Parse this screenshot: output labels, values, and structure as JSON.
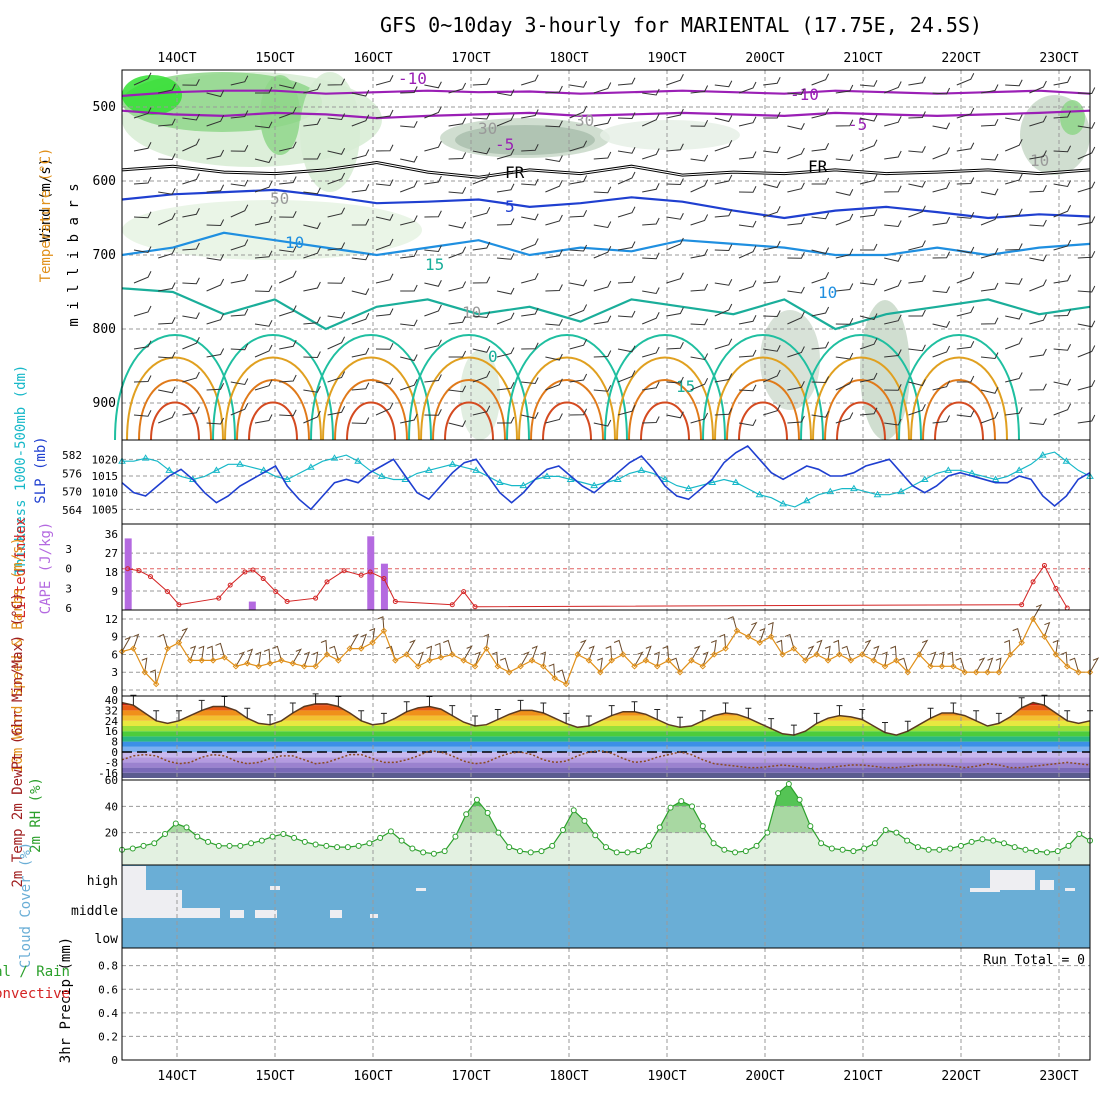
{
  "title": "GFS 0~10day 3-hourly for MARIENTAL (17.75E, 24.5S)",
  "time_labels": [
    "14OCT",
    "15OCT",
    "16OCT",
    "17OCT",
    "18OCT",
    "19OCT",
    "20OCT",
    "21OCT",
    "22OCT",
    "23OCT"
  ],
  "colors": {
    "purple": "#9a1fb5",
    "blue": "#1f3fd0",
    "cyan": "#17b8c8",
    "green": "#2ca02c",
    "orange": "#e0901a",
    "red": "#d42424",
    "sky": "#6aaed6"
  },
  "chart_data": [
    {
      "type": "heatmap",
      "id": "upper_air",
      "ylabel": "m i l l i b a r s",
      "side_labels": [
        "Wind (m/s)",
        "Temperature (°C)",
        "RH (%)"
      ],
      "yticks": [
        500,
        600,
        700,
        800,
        900
      ],
      "ylim": [
        950,
        450
      ],
      "contour_labels": [
        "-10",
        "-10",
        "-5",
        "-5",
        "FR",
        "FR",
        "5",
        "10",
        "15",
        "10",
        "0",
        "15",
        "10",
        "30",
        "30",
        "50",
        "10"
      ],
      "temp_levels": [
        {
          "name": "-10",
          "mb": [
            485,
            480,
            478,
            478,
            482,
            480,
            478,
            480,
            479,
            482,
            480,
            478,
            480,
            482,
            478,
            480,
            482,
            480,
            478,
            482
          ]
        },
        {
          "name": "-5",
          "mb": [
            505,
            510,
            512,
            508,
            510,
            515,
            512,
            510,
            508,
            512,
            510,
            508,
            510,
            512,
            508,
            510,
            512,
            510,
            508,
            505
          ]
        },
        {
          "name": "FR",
          "mb": [
            585,
            580,
            588,
            590,
            585,
            575,
            588,
            595,
            585,
            590,
            580,
            592,
            588,
            590,
            585,
            590,
            588,
            585,
            590,
            585
          ]
        },
        {
          "name": "5",
          "mb": [
            625,
            618,
            615,
            612,
            620,
            630,
            628,
            625,
            635,
            630,
            622,
            628,
            640,
            650,
            640,
            635,
            642,
            650,
            645,
            648
          ]
        },
        {
          "name": "10",
          "mb": [
            700,
            690,
            670,
            680,
            690,
            700,
            690,
            680,
            700,
            690,
            695,
            680,
            685,
            690,
            700,
            700,
            690,
            700,
            690,
            685
          ]
        },
        {
          "name": "15",
          "mb": [
            745,
            750,
            780,
            760,
            800,
            770,
            760,
            780,
            770,
            790,
            760,
            770,
            780,
            760,
            800,
            780,
            770,
            760,
            780,
            770
          ]
        }
      ],
      "rh_note": "RH shaded greens"
    },
    {
      "type": "line",
      "id": "thickness_slp",
      "ylabel_left": "Thickness 1000-500mb (dm)",
      "ylabel_right": "SLP (mb)",
      "yticks_left": [
        564,
        570,
        576,
        582
      ],
      "yticks_right": [
        1005,
        1010,
        1015,
        1020
      ],
      "series": [
        {
          "name": "SLP (mb)",
          "values": [
            1013,
            1010,
            1009,
            1012,
            1015,
            1017,
            1014,
            1010,
            1007,
            1009,
            1012,
            1014,
            1016,
            1018,
            1012,
            1008,
            1005,
            1009,
            1013,
            1014,
            1013,
            1016,
            1018,
            1020,
            1015,
            1010,
            1008,
            1012,
            1016,
            1019,
            1020,
            1015,
            1010,
            1007,
            1010,
            1014,
            1017,
            1018,
            1015,
            1012,
            1010,
            1013,
            1016,
            1019,
            1021,
            1017,
            1012,
            1009,
            1008,
            1011,
            1014,
            1019,
            1022,
            1024,
            1020,
            1016,
            1014,
            1016,
            1018,
            1017,
            1015,
            1015,
            1016,
            1018,
            1019,
            1020,
            1016,
            1012,
            1010,
            1012,
            1015,
            1016,
            1015,
            1014,
            1013,
            1013,
            1015,
            1014,
            1009,
            1006,
            1009,
            1014,
            1016
          ]
        },
        {
          "name": "Thickness (dm)",
          "values": [
            580,
            580,
            581,
            580,
            577,
            575,
            574,
            575,
            577,
            579,
            579,
            578,
            577,
            575,
            574,
            576,
            578,
            580,
            581,
            582,
            580,
            577,
            575,
            574,
            574,
            576,
            577,
            578,
            579,
            578,
            577,
            575,
            573,
            572,
            572,
            574,
            575,
            575,
            574,
            573,
            572,
            573,
            574,
            576,
            577,
            576,
            574,
            572,
            571,
            572,
            573,
            574,
            573,
            571,
            569,
            568,
            566,
            565,
            567,
            569,
            570,
            571,
            571,
            570,
            569,
            569,
            570,
            572,
            574,
            576,
            577,
            577,
            576,
            575,
            574,
            575,
            577,
            579,
            582,
            583,
            580,
            577,
            575
          ]
        }
      ]
    },
    {
      "type": "bar",
      "id": "cape_li",
      "ylabel_left": "Lifted Index",
      "ylabel_right": "CAPE (J/kg)",
      "yticks_li": [
        -3,
        0,
        3,
        6
      ],
      "yticks_cape": [
        9,
        18,
        27,
        36
      ],
      "cape_values": [
        {
          "x": 0.5,
          "v": 34
        },
        {
          "x": 11.4,
          "v": 4
        },
        {
          "x": 21.8,
          "v": 35
        },
        {
          "x": 23.0,
          "v": 22
        }
      ],
      "li_values": [
        {
          "x": 0.5,
          "v": 0.0
        },
        {
          "x": 1.5,
          "v": 0.3
        },
        {
          "x": 2.5,
          "v": 1.2
        },
        {
          "x": 4.0,
          "v": 3.5
        },
        {
          "x": 5.0,
          "v": 5.5
        },
        {
          "x": 8.5,
          "v": 4.5
        },
        {
          "x": 9.5,
          "v": 2.5
        },
        {
          "x": 10.8,
          "v": 0.5
        },
        {
          "x": 11.5,
          "v": 0.2
        },
        {
          "x": 12.4,
          "v": 1.5
        },
        {
          "x": 13.5,
          "v": 3.5
        },
        {
          "x": 14.5,
          "v": 5.0
        },
        {
          "x": 17.0,
          "v": 4.5
        },
        {
          "x": 18.0,
          "v": 2.0
        },
        {
          "x": 19.5,
          "v": 0.3
        },
        {
          "x": 21.0,
          "v": 1.0
        },
        {
          "x": 21.8,
          "v": 0.5
        },
        {
          "x": 23.0,
          "v": 1.5
        },
        {
          "x": 24.0,
          "v": 5.0
        },
        {
          "x": 29.0,
          "v": 5.5
        },
        {
          "x": 30.0,
          "v": 3.5
        },
        {
          "x": 31.0,
          "v": 5.8
        },
        {
          "x": 79.0,
          "v": 5.5
        },
        {
          "x": 80.0,
          "v": 2.0
        },
        {
          "x": 81.0,
          "v": -0.5
        },
        {
          "x": 82.0,
          "v": 3.0
        },
        {
          "x": 83.0,
          "v": 6.0
        }
      ]
    },
    {
      "type": "line",
      "id": "wind10m",
      "ylabel": "10m Wind Speed & Barbs (m/s)",
      "yticks": [
        0,
        3,
        6,
        9,
        12
      ],
      "series": [
        {
          "name": "Speed",
          "values": [
            6.5,
            7,
            3,
            1,
            7,
            8,
            5,
            5,
            5,
            5.5,
            4,
            4.5,
            4,
            4.5,
            5,
            4.5,
            4,
            4,
            6,
            5,
            7,
            7,
            8,
            10,
            5,
            6,
            4,
            5,
            5.5,
            6,
            5,
            4,
            7,
            4,
            3,
            4,
            5,
            4,
            2,
            1,
            6,
            5,
            3,
            5,
            6,
            4,
            5,
            4,
            5,
            3,
            5,
            4,
            6,
            7,
            10,
            9,
            8,
            9,
            6,
            7,
            5,
            6,
            5,
            6,
            5,
            6,
            5,
            4,
            5,
            3,
            6,
            4,
            4,
            4,
            3,
            3,
            3,
            3,
            6,
            8,
            12,
            9,
            6,
            4,
            3,
            3
          ]
        }
      ]
    },
    {
      "type": "area",
      "id": "temp2m",
      "ylabel": "2m Temp 2m DewPt (6hr Min/Max) (°C)",
      "yticks": [
        -16,
        -8,
        0,
        8,
        16,
        24,
        32,
        40
      ],
      "series": [
        {
          "name": "Temp",
          "values": [
            38,
            36,
            30,
            24,
            22,
            24,
            28,
            32,
            35,
            35,
            32,
            26,
            22,
            21,
            24,
            30,
            35,
            37,
            37,
            35,
            30,
            24,
            21,
            22,
            26,
            31,
            34,
            35,
            33,
            28,
            23,
            20,
            21,
            25,
            29,
            32,
            32,
            30,
            26,
            22,
            19,
            20,
            24,
            28,
            31,
            31,
            29,
            25,
            21,
            19,
            20,
            24,
            28,
            30,
            29,
            26,
            22,
            18,
            14,
            13,
            16,
            22,
            26,
            28,
            27,
            25,
            20,
            15,
            13,
            16,
            21,
            26,
            30,
            30,
            28,
            24,
            20,
            22,
            27,
            34,
            38,
            36,
            30,
            24,
            22,
            24
          ]
        },
        {
          "name": "DewPt",
          "values": [
            -6,
            -3,
            -2,
            -3,
            -7,
            -9,
            -8,
            -4,
            -2,
            -3,
            -7,
            -9,
            -8,
            -5,
            -3,
            -3,
            -6,
            -9,
            -8,
            -5,
            -2,
            -2,
            -5,
            -8,
            -8,
            -6,
            -3,
            1,
            0,
            -3,
            -7,
            -9,
            -8,
            -4,
            -1,
            0,
            -2,
            -6,
            -8,
            -7,
            -3,
            0,
            1,
            -1,
            -5,
            -8,
            -7,
            -4,
            -2,
            0,
            -2,
            -6,
            -9,
            -10,
            -11,
            -12,
            -12,
            -11,
            -10,
            -11,
            -12,
            -13,
            -12,
            -11,
            -10,
            -10,
            -11,
            -12,
            -12,
            -11,
            -10,
            -10,
            -10,
            -11,
            -12,
            -11,
            -9,
            -10,
            -12,
            -12,
            -11,
            -10,
            -9,
            -8,
            -9,
            -10
          ]
        }
      ]
    },
    {
      "type": "area",
      "id": "rh2m",
      "ylabel": "2m RH (%)",
      "yticks": [
        20,
        40,
        60
      ],
      "series": [
        {
          "name": "RH",
          "values": [
            7,
            8,
            10,
            12,
            19,
            27,
            24,
            17,
            13,
            10,
            10,
            10,
            12,
            14,
            17,
            19,
            16,
            13,
            11,
            10,
            9,
            9,
            10,
            12,
            16,
            21,
            14,
            8,
            5,
            4,
            6,
            17,
            34,
            45,
            35,
            20,
            9,
            6,
            5,
            6,
            10,
            22,
            37,
            29,
            18,
            9,
            5,
            5,
            6,
            10,
            24,
            39,
            44,
            40,
            25,
            12,
            7,
            5,
            6,
            10,
            20,
            50,
            57,
            45,
            25,
            12,
            8,
            7,
            6,
            8,
            12,
            22,
            20,
            14,
            9,
            7,
            7,
            8,
            10,
            13,
            15,
            14,
            12,
            9,
            7,
            6,
            5,
            6,
            10,
            19,
            14
          ]
        }
      ]
    },
    {
      "type": "heatmap",
      "id": "cloud",
      "ylabel": "Cloud Cover (%)",
      "levels": [
        "high",
        "middle",
        "low"
      ]
    },
    {
      "type": "bar",
      "id": "precip",
      "ylabel": "3hr Precip (mm)",
      "legend": [
        "Total / Rain",
        "Convective"
      ],
      "yticks": [
        0,
        0.2,
        0.4,
        0.6,
        0.8
      ],
      "values": [],
      "run_total": "Run Total = 0"
    }
  ]
}
